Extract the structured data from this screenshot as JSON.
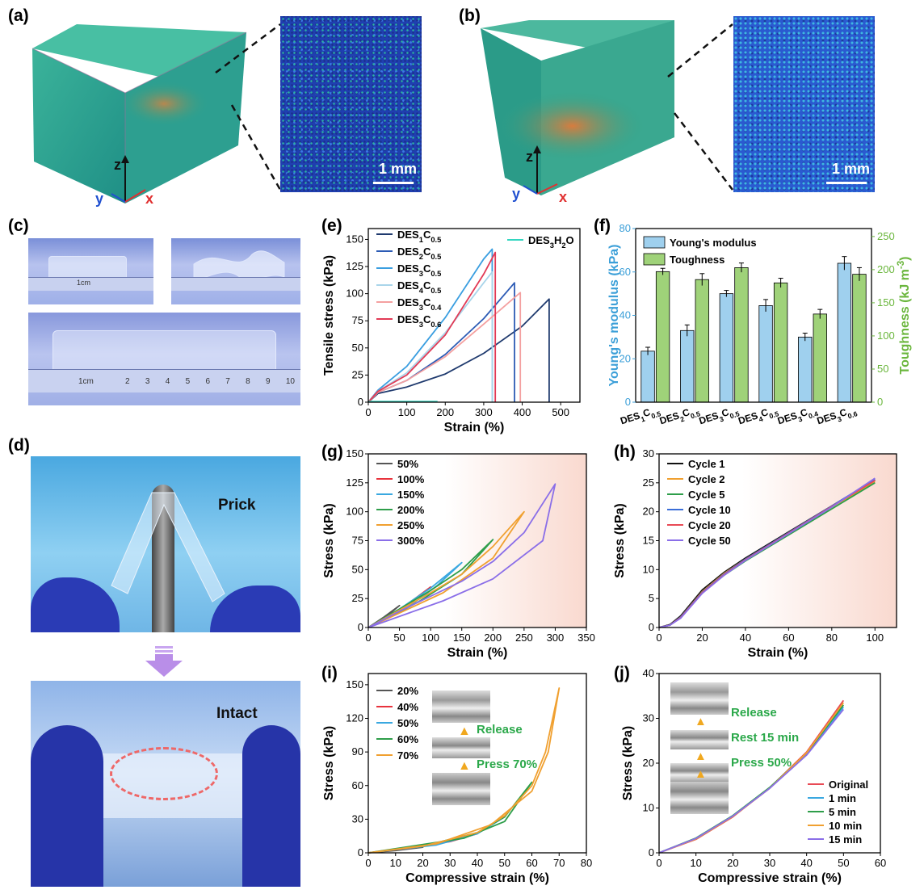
{
  "panel_labels": {
    "a": "(a)",
    "b": "(b)",
    "c": "(c)",
    "d": "(d)",
    "e": "(e)",
    "f": "(f)",
    "g": "(g)",
    "h": "(h)",
    "i": "(i)",
    "j": "(j)"
  },
  "ct": {
    "axis_z": "z",
    "axis_y": "y",
    "axis_x": "x",
    "scale_bar": "1 mm",
    "colors": {
      "cube_face": "#2aa38a",
      "cube_core": "#d8823f",
      "map_bg": "#1f3fb0",
      "axis_x": "#e03030",
      "axis_y": "#2050d0"
    }
  },
  "photo_c": {
    "ruler_cm": "1cm",
    "ruler_ticks": [
      "2",
      "3",
      "4",
      "5",
      "6",
      "7",
      "8",
      "9",
      "10"
    ]
  },
  "photo_d": {
    "top_text": "Prick",
    "bottom_text": "Intact"
  },
  "inset_i": {
    "release": "Release",
    "press": "Press 70%"
  },
  "inset_j": {
    "release": "Release",
    "rest": "Rest 15 min",
    "press": "Press 50%"
  },
  "chart_data": [
    {
      "id": "e",
      "type": "line",
      "xlabel": "Strain (%)",
      "ylabel": "Tensile stress (kPa)",
      "xlim": [
        0,
        550
      ],
      "ylim": [
        0,
        160
      ],
      "xticks": [
        0,
        100,
        200,
        300,
        400,
        500
      ],
      "yticks": [
        0,
        25,
        50,
        75,
        100,
        125,
        150
      ],
      "legend": [
        {
          "base": "DES",
          "s1": "1",
          "mid": "C",
          "s2": "0.5"
        },
        {
          "base": "DES",
          "s1": "2",
          "mid": "C",
          "s2": "0.5"
        },
        {
          "base": "DES",
          "s1": "3",
          "mid": "C",
          "s2": "0.5"
        },
        {
          "base": "DES",
          "s1": "4",
          "mid": "C",
          "s2": "0.5"
        },
        {
          "base": "DES",
          "s1": "3",
          "mid": "C",
          "s2": "0.4"
        },
        {
          "base": "DES",
          "s1": "3",
          "mid": "C",
          "s2": "0.6"
        },
        {
          "base": "DES",
          "s1": "3",
          "mid": "H",
          "s2": "2",
          "tail": "O"
        }
      ],
      "series": [
        {
          "color": "#1f3a6e",
          "x": [
            0,
            25,
            100,
            200,
            300,
            400,
            470,
            470
          ],
          "y": [
            0,
            8,
            14,
            26,
            45,
            70,
            95,
            0
          ]
        },
        {
          "color": "#2c5bb5",
          "x": [
            0,
            25,
            100,
            200,
            300,
            380,
            380
          ],
          "y": [
            0,
            9,
            20,
            44,
            77,
            110,
            0
          ]
        },
        {
          "color": "#3a9ee0",
          "x": [
            0,
            25,
            100,
            200,
            300,
            322,
            322
          ],
          "y": [
            0,
            11,
            33,
            78,
            132,
            141,
            0
          ]
        },
        {
          "color": "#a9d5ea",
          "x": [
            0,
            25,
            100,
            200,
            300,
            322,
            322
          ],
          "y": [
            0,
            10,
            27,
            64,
            110,
            120,
            0
          ]
        },
        {
          "color": "#f4a0a0",
          "x": [
            0,
            25,
            100,
            200,
            300,
            395,
            395
          ],
          "y": [
            0,
            9,
            20,
            42,
            72,
            101,
            0
          ]
        },
        {
          "color": "#e23a55",
          "x": [
            0,
            25,
            100,
            200,
            300,
            330,
            330
          ],
          "y": [
            0,
            10,
            25,
            62,
            118,
            138,
            0
          ]
        },
        {
          "color": "#33d6c0",
          "x": [
            0,
            180
          ],
          "y": [
            0.6,
            0.6
          ]
        }
      ]
    },
    {
      "id": "f",
      "type": "bar",
      "categories": [
        {
          "base": "DES",
          "s1": "1",
          "mid": "C",
          "s2": "0.5"
        },
        {
          "base": "DES",
          "s1": "2",
          "mid": "C",
          "s2": "0.5"
        },
        {
          "base": "DES",
          "s1": "3",
          "mid": "C",
          "s2": "0.5"
        },
        {
          "base": "DES",
          "s1": "4",
          "mid": "C",
          "s2": "0.5"
        },
        {
          "base": "DES",
          "s1": "3",
          "mid": "C",
          "s2": "0.4"
        },
        {
          "base": "DES",
          "s1": "3",
          "mid": "C",
          "s2": "0.6"
        }
      ],
      "ylabel": "Young's modulus (kPa)",
      "y2label_main": "Toughness (kJ m",
      "y2label_sup": "-3",
      "y2label_end": ")",
      "ylim": [
        0,
        80
      ],
      "y2lim": [
        0,
        262
      ],
      "yticks": [
        0,
        20,
        40,
        60,
        80
      ],
      "y2ticks": [
        0,
        50,
        100,
        150,
        200,
        250
      ],
      "legend": [
        "Young's modulus",
        "Toughness"
      ],
      "colors": {
        "modulus": "#9fd0ee",
        "toughness": "#9fd279",
        "left_axis": "#3b9fd8",
        "right_axis": "#6ab63c"
      },
      "series": [
        {
          "name": "Young's modulus",
          "values": [
            23.5,
            33,
            50,
            44.5,
            30,
            64
          ],
          "errors": [
            1.8,
            2.6,
            1.5,
            2.8,
            1.8,
            3.1
          ]
        },
        {
          "name": "Toughness",
          "values": [
            197,
            185,
            203,
            180,
            133,
            193
          ],
          "errors": [
            5,
            9,
            7,
            7,
            7,
            10
          ]
        }
      ]
    },
    {
      "id": "g",
      "type": "line",
      "xlabel": "Strain (%)",
      "ylabel": "Stress (kPa)",
      "xlim": [
        0,
        350
      ],
      "ylim": [
        0,
        150
      ],
      "xticks": [
        0,
        50,
        100,
        150,
        200,
        250,
        300,
        350
      ],
      "yticks": [
        0,
        25,
        50,
        75,
        100,
        125,
        150
      ],
      "legend": [
        "50%",
        "100%",
        "150%",
        "200%",
        "250%",
        "300%"
      ],
      "series": [
        {
          "name": "50%",
          "color": "#555555",
          "x": [
            0,
            25,
            50,
            30,
            0
          ],
          "y": [
            0,
            9,
            19,
            10,
            0
          ]
        },
        {
          "name": "100%",
          "color": "#e8333d",
          "x": [
            0,
            50,
            100,
            70,
            30,
            0
          ],
          "y": [
            0,
            15,
            35,
            22,
            8,
            0
          ]
        },
        {
          "name": "150%",
          "color": "#3aa8e0",
          "x": [
            0,
            50,
            100,
            150,
            110,
            60,
            0
          ],
          "y": [
            0,
            16,
            34,
            56,
            36,
            16,
            0
          ]
        },
        {
          "name": "200%",
          "color": "#2e9e4a",
          "x": [
            0,
            50,
            100,
            150,
            200,
            150,
            80,
            0
          ],
          "y": [
            0,
            16,
            32,
            50,
            76,
            46,
            22,
            0
          ]
        },
        {
          "name": "250%",
          "color": "#f0a030",
          "x": [
            0,
            50,
            100,
            150,
            200,
            250,
            200,
            120,
            0
          ],
          "y": [
            0,
            15,
            30,
            46,
            70,
            100,
            60,
            30,
            0
          ]
        },
        {
          "name": "300%",
          "color": "#8a6ee8",
          "x": [
            0,
            50,
            100,
            150,
            200,
            250,
            300,
            280,
            200,
            120,
            0
          ],
          "y": [
            0,
            14,
            27,
            40,
            57,
            82,
            124,
            75,
            42,
            23,
            0
          ]
        }
      ]
    },
    {
      "id": "h",
      "type": "line",
      "xlabel": "Strain (%)",
      "ylabel": "Stress (kPa)",
      "xlim": [
        0,
        110
      ],
      "ylim": [
        0,
        30
      ],
      "xticks": [
        0,
        20,
        40,
        60,
        80,
        100
      ],
      "yticks": [
        0,
        5,
        10,
        15,
        20,
        25,
        30
      ],
      "legend": [
        "Cycle 1",
        "Cycle 2",
        "Cycle 5",
        "Cycle 10",
        "Cycle 20",
        "Cycle 50"
      ],
      "series": [
        {
          "name": "Cycle 1",
          "color": "#111111",
          "x": [
            0,
            5,
            10,
            20,
            30,
            40,
            60,
            80,
            100
          ],
          "y": [
            0,
            0.5,
            2,
            6.5,
            9.5,
            12,
            16.5,
            21,
            25.5
          ]
        },
        {
          "name": "Cycle 2",
          "color": "#f0a030",
          "x": [
            0,
            5,
            10,
            20,
            30,
            40,
            60,
            80,
            100
          ],
          "y": [
            0,
            0.4,
            1.8,
            6.2,
            9.3,
            11.8,
            16.3,
            20.8,
            25.2
          ]
        },
        {
          "name": "Cycle 5",
          "color": "#2e9e4a",
          "x": [
            0,
            5,
            10,
            20,
            30,
            40,
            60,
            80,
            100
          ],
          "y": [
            0,
            0.4,
            1.7,
            6,
            9,
            11.5,
            16,
            20.5,
            25
          ]
        },
        {
          "name": "Cycle 10",
          "color": "#3a6ed8",
          "x": [
            0,
            5,
            10,
            20,
            30,
            40,
            60,
            80,
            100
          ],
          "y": [
            0,
            0.4,
            1.8,
            6.1,
            9.2,
            11.8,
            16.4,
            21,
            25.6
          ]
        },
        {
          "name": "Cycle 20",
          "color": "#e84a55",
          "x": [
            0,
            5,
            10,
            20,
            30,
            40,
            60,
            80,
            100
          ],
          "y": [
            0,
            0.4,
            1.7,
            6,
            9.1,
            11.7,
            16.3,
            20.9,
            25.4
          ]
        },
        {
          "name": "Cycle 50",
          "color": "#8a6ee8",
          "x": [
            0,
            5,
            10,
            20,
            30,
            40,
            60,
            80,
            100
          ],
          "y": [
            0,
            0.4,
            1.6,
            5.9,
            9,
            11.6,
            16.2,
            20.8,
            25.8
          ]
        }
      ]
    },
    {
      "id": "i",
      "type": "line",
      "xlabel": "Compressive strain (%)",
      "ylabel": "Stress (kPa)",
      "xlim": [
        0,
        80
      ],
      "ylim": [
        0,
        160
      ],
      "xticks": [
        0,
        10,
        20,
        30,
        40,
        50,
        60,
        70,
        80
      ],
      "yticks": [
        0,
        30,
        60,
        90,
        120,
        150
      ],
      "legend": [
        "20%",
        "40%",
        "50%",
        "60%",
        "70%"
      ],
      "series": [
        {
          "name": "20%",
          "color": "#555555",
          "x": [
            0,
            10,
            20,
            10,
            0
          ],
          "y": [
            0,
            2,
            5,
            2.5,
            0
          ]
        },
        {
          "name": "40%",
          "color": "#e8333d",
          "x": [
            0,
            20,
            40,
            30,
            15,
            0
          ],
          "y": [
            0,
            6,
            17,
            10,
            4,
            0
          ]
        },
        {
          "name": "50%",
          "color": "#3aa8e0",
          "x": [
            0,
            20,
            40,
            50,
            40,
            25,
            0
          ],
          "y": [
            0,
            6,
            18,
            32,
            17,
            7,
            0
          ]
        },
        {
          "name": "60%",
          "color": "#2e9e4a",
          "x": [
            0,
            20,
            40,
            50,
            60,
            50,
            35,
            0
          ],
          "y": [
            0,
            6,
            18,
            32,
            63,
            28,
            13,
            0
          ]
        },
        {
          "name": "70%",
          "color": "#f0a030",
          "x": [
            0,
            20,
            40,
            50,
            60,
            65,
            70,
            66,
            60,
            45,
            25,
            0
          ],
          "y": [
            0,
            6,
            18,
            33,
            60,
            90,
            147,
            90,
            55,
            25,
            8,
            0
          ]
        }
      ]
    },
    {
      "id": "j",
      "type": "line",
      "xlabel": "Compressive strain (%)",
      "ylabel": "Stress (kPa)",
      "xlim": [
        0,
        60
      ],
      "ylim": [
        0,
        40
      ],
      "xticks": [
        0,
        10,
        20,
        30,
        40,
        50,
        60
      ],
      "yticks": [
        0,
        10,
        20,
        30,
        40
      ],
      "legend": [
        "Original",
        "1 min",
        "5 min",
        "10 min",
        "15 min"
      ],
      "series": [
        {
          "name": "Original",
          "color": "#e84a55",
          "x": [
            0,
            10,
            20,
            30,
            40,
            50
          ],
          "y": [
            0,
            3,
            8,
            14.5,
            22.5,
            34
          ]
        },
        {
          "name": "1 min",
          "color": "#3aa8e0",
          "x": [
            0,
            10,
            20,
            30,
            40,
            50
          ],
          "y": [
            0,
            3.2,
            8.2,
            14.5,
            22,
            32.5
          ]
        },
        {
          "name": "5 min",
          "color": "#2e9e4a",
          "x": [
            0,
            10,
            20,
            30,
            40,
            50
          ],
          "y": [
            0,
            3.3,
            8.3,
            14.6,
            22.2,
            33
          ]
        },
        {
          "name": "10 min",
          "color": "#f0a030",
          "x": [
            0,
            10,
            20,
            30,
            40,
            50
          ],
          "y": [
            0,
            3.1,
            8.1,
            14.4,
            22.3,
            33.5
          ]
        },
        {
          "name": "15 min",
          "color": "#8a6ee8",
          "x": [
            0,
            10,
            20,
            30,
            40,
            50
          ],
          "y": [
            0,
            3.2,
            8.2,
            14.4,
            21.8,
            32
          ]
        }
      ]
    }
  ]
}
